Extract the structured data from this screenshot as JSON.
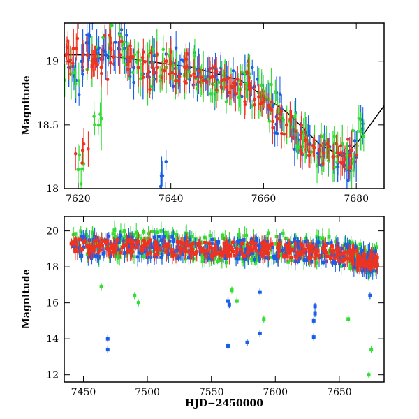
{
  "chart_data": [
    {
      "type": "scatter",
      "xlabel": "",
      "ylabel": "Magnitude",
      "xlim": [
        7617,
        7686
      ],
      "ylim": [
        19.3,
        18.0
      ],
      "y_inverted": true,
      "xticks": [
        7620,
        7640,
        7660,
        7680
      ],
      "xtick_labels": [
        "7620",
        "7640",
        "7660",
        "7680"
      ],
      "yticks": [
        18,
        18.5,
        19
      ],
      "ytick_labels": [
        "18",
        "18.5",
        "19"
      ],
      "series": [
        {
          "color": "#1a5fe6",
          "marker": "circle",
          "x": [
            7618,
            7619.5,
            7621,
            7622.5,
            7624,
            7626,
            7628,
            7630,
            7632,
            7634,
            7636,
            7638,
            7640,
            7642,
            7644,
            7646,
            7648,
            7650,
            7652,
            7654,
            7656,
            7658,
            7660,
            7662,
            7664,
            7666,
            7668,
            7670,
            7672,
            7674,
            7676,
            7678,
            7680,
            7681
          ],
          "y": [
            18.95,
            18.85,
            19.05,
            19.2,
            19.1,
            19.05,
            19.15,
            19.1,
            18.95,
            18.9,
            18.95,
            18.1,
            19.0,
            18.9,
            18.95,
            18.92,
            18.88,
            18.85,
            18.85,
            18.82,
            18.9,
            18.8,
            18.72,
            18.65,
            18.55,
            18.48,
            18.42,
            18.35,
            18.3,
            18.25,
            18.2,
            18.15,
            18.25,
            18.45
          ],
          "yerr": [
            0.15,
            0.18,
            0.2,
            0.18,
            0.15,
            0.2,
            0.25,
            0.2,
            0.15,
            0.2,
            0.25,
            0.15,
            0.2,
            0.15,
            0.2,
            0.18,
            0.15,
            0.1,
            0.15,
            0.1,
            0.15,
            0.12,
            0.1,
            0.1,
            0.1,
            0.12,
            0.1,
            0.15,
            0.12,
            0.15,
            0.15,
            0.2,
            0.2,
            0.15
          ]
        },
        {
          "color": "#33dd33",
          "marker": "circle",
          "x": [
            7618.5,
            7620,
            7623,
            7625,
            7627,
            7629,
            7631,
            7633,
            7635,
            7637,
            7639,
            7641,
            7643,
            7645,
            7647,
            7649,
            7651,
            7653,
            7655,
            7657,
            7659,
            7661,
            7663,
            7665,
            7667,
            7669,
            7671,
            7673,
            7675,
            7677,
            7679,
            7681
          ],
          "y": [
            18.9,
            18.15,
            19.0,
            18.55,
            19.1,
            19.2,
            19.0,
            18.95,
            18.9,
            19.05,
            18.95,
            18.85,
            18.9,
            18.95,
            18.88,
            18.82,
            18.85,
            18.8,
            18.78,
            18.9,
            18.75,
            18.7,
            18.6,
            18.5,
            18.45,
            18.4,
            18.35,
            18.28,
            18.25,
            18.35,
            18.2,
            18.45
          ],
          "yerr": [
            0.2,
            0.2,
            0.2,
            0.25,
            0.2,
            0.2,
            0.15,
            0.2,
            0.25,
            0.2,
            0.2,
            0.15,
            0.2,
            0.15,
            0.2,
            0.15,
            0.15,
            0.15,
            0.2,
            0.15,
            0.2,
            0.15,
            0.15,
            0.15,
            0.15,
            0.2,
            0.15,
            0.15,
            0.2,
            0.15,
            0.2,
            0.15
          ]
        },
        {
          "color": "#ee3322",
          "marker": "circle",
          "x": [
            7618,
            7619,
            7621,
            7622,
            7623.5,
            7625,
            7627,
            7629,
            7631,
            7633,
            7635,
            7637,
            7639,
            7641,
            7643,
            7645,
            7647,
            7649,
            7651,
            7653,
            7655,
            7657,
            7659,
            7661,
            7663,
            7665,
            7667,
            7669,
            7671,
            7673,
            7675,
            7677,
            7679
          ],
          "y": [
            19.0,
            19.1,
            18.3,
            19.05,
            19.0,
            18.95,
            19.1,
            19.05,
            19.0,
            18.95,
            18.9,
            18.95,
            19.0,
            18.9,
            18.95,
            18.9,
            18.85,
            18.88,
            18.85,
            18.8,
            18.82,
            18.78,
            18.72,
            18.65,
            18.55,
            18.5,
            18.45,
            18.38,
            18.32,
            18.28,
            18.25,
            18.2,
            18.3
          ],
          "yerr": [
            0.15,
            0.15,
            0.1,
            0.15,
            0.12,
            0.15,
            0.15,
            0.15,
            0.12,
            0.15,
            0.15,
            0.12,
            0.15,
            0.12,
            0.12,
            0.12,
            0.1,
            0.1,
            0.1,
            0.1,
            0.1,
            0.1,
            0.1,
            0.1,
            0.1,
            0.1,
            0.1,
            0.1,
            0.1,
            0.1,
            0.1,
            0.1,
            0.15
          ]
        }
      ],
      "model_curve": {
        "color": "#000000",
        "x": [
          7617,
          7625,
          7635,
          7645,
          7655,
          7665,
          7672,
          7677,
          7680,
          7683,
          7686
        ],
        "y": [
          19.05,
          19.05,
          19.0,
          18.95,
          18.85,
          18.6,
          18.35,
          18.25,
          18.35,
          18.5,
          18.65
        ]
      }
    },
    {
      "type": "scatter",
      "xlabel": "HJD−2450000",
      "ylabel": "Magnitude",
      "xlim": [
        7435,
        7685
      ],
      "ylim": [
        20.8,
        11.6
      ],
      "y_inverted": true,
      "xticks": [
        7450,
        7500,
        7550,
        7600,
        7650
      ],
      "xtick_labels": [
        "7450",
        "7500",
        "7550",
        "7600",
        "7650"
      ],
      "yticks": [
        12,
        14,
        16,
        18,
        20
      ],
      "ytick_labels": [
        "12",
        "14",
        "16",
        "18",
        "20"
      ],
      "outliers": [
        {
          "color": "#1a5fe6",
          "x": [
            7469,
            7469,
            7563,
            7563,
            7564,
            7578,
            7588,
            7588,
            7630,
            7630,
            7631,
            7631,
            7674
          ],
          "y": [
            13.4,
            14.0,
            13.6,
            16.1,
            15.9,
            13.8,
            14.3,
            16.6,
            14.1,
            15.0,
            15.4,
            15.8,
            16.4
          ]
        },
        {
          "color": "#33dd33",
          "x": [
            7464,
            7490,
            7493,
            7566,
            7570,
            7591,
            7657,
            7673,
            7675
          ],
          "y": [
            16.9,
            16.4,
            16.0,
            16.7,
            16.1,
            15.1,
            15.1,
            12.0,
            13.4
          ]
        }
      ],
      "series_band": [
        {
          "color": "#33dd33",
          "x": [
            7440,
            7460,
            7480,
            7500,
            7520,
            7540,
            7560,
            7580,
            7600,
            7620,
            7640,
            7660,
            7670,
            7680
          ],
          "y": [
            19.3,
            19.2,
            19.3,
            19.3,
            19.2,
            19.1,
            19.0,
            19.1,
            19.1,
            19.0,
            18.9,
            18.7,
            18.4,
            18.3
          ],
          "spread": 0.8
        },
        {
          "color": "#1a5fe6",
          "x": [
            7440,
            7460,
            7480,
            7500,
            7520,
            7540,
            7560,
            7580,
            7600,
            7620,
            7640,
            7660,
            7670,
            7680
          ],
          "y": [
            19.2,
            19.1,
            19.2,
            19.1,
            19.1,
            19.0,
            19.0,
            19.0,
            19.0,
            18.9,
            18.8,
            18.6,
            18.3,
            18.3
          ],
          "spread": 0.6
        },
        {
          "color": "#ee3322",
          "x": [
            7440,
            7460,
            7480,
            7500,
            7520,
            7540,
            7560,
            7580,
            7600,
            7620,
            7640,
            7660,
            7670,
            7680
          ],
          "y": [
            19.2,
            19.1,
            19.1,
            19.1,
            19.0,
            19.0,
            19.0,
            19.0,
            18.95,
            18.9,
            18.8,
            18.6,
            18.3,
            18.3
          ],
          "spread": 0.4
        }
      ]
    }
  ]
}
